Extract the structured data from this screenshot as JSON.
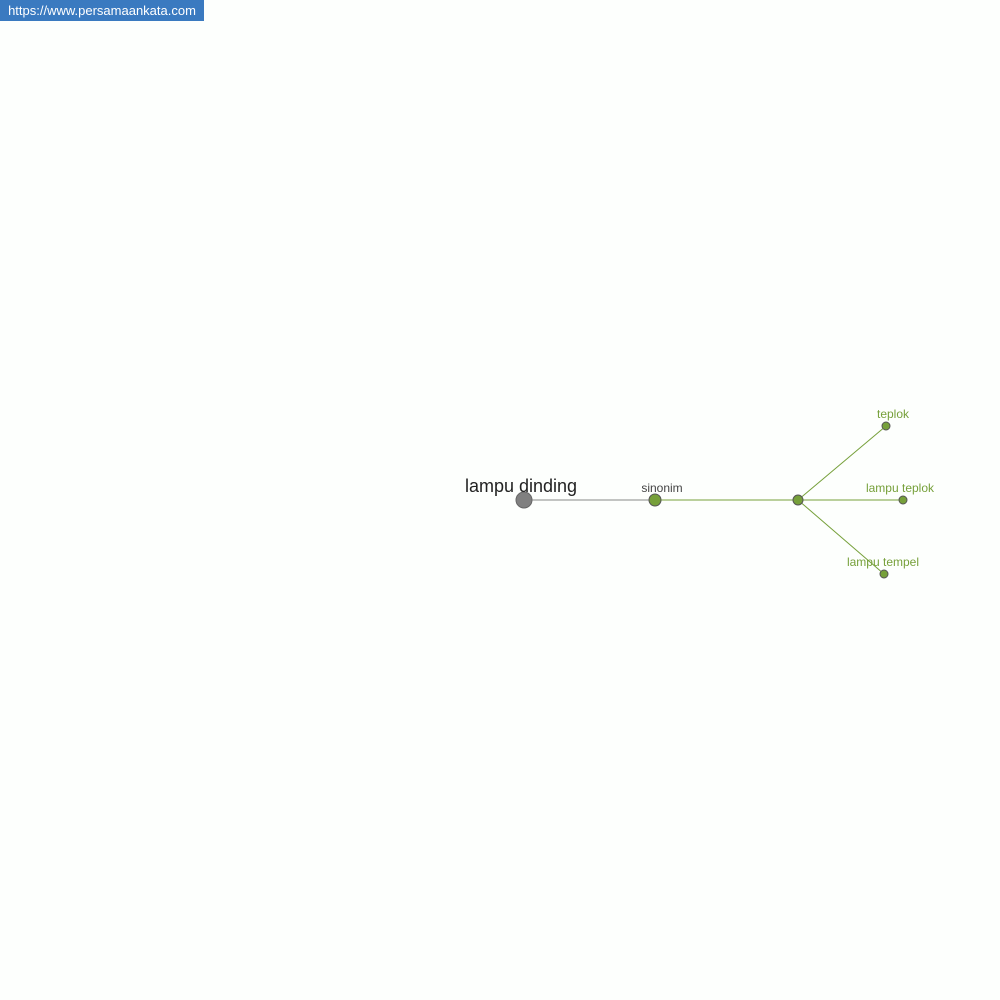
{
  "watermark": {
    "url": "https://www.persamaankata.com"
  },
  "colors": {
    "banner": "#3a7ac0",
    "root_node": "#808080",
    "green": "#76a03a",
    "root_label": "#222222",
    "relation_label": "#444444"
  },
  "graph": {
    "root": {
      "label": "lampu dinding"
    },
    "relation": {
      "label": "sinonim"
    },
    "synonyms": [
      {
        "label": "teplok"
      },
      {
        "label": "lampu teplok"
      },
      {
        "label": "lampu tempel"
      }
    ]
  }
}
